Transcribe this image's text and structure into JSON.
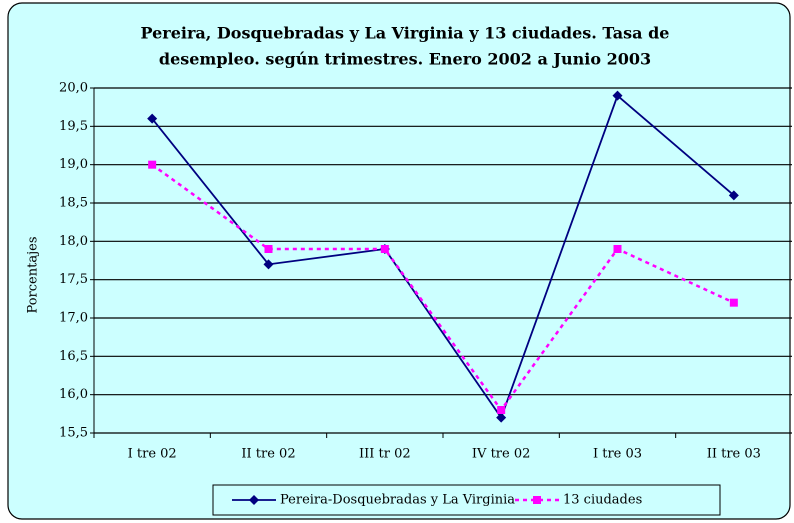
{
  "chart_data": {
    "type": "line",
    "title": [
      "Pereira, Dosquebradas y La Virginia y 13 ciudades. Tasa de",
      "desempleo. según trimestres. Enero 2002 a Junio 2003"
    ],
    "y_label": "Porcentajes",
    "categories": [
      "I tre 02",
      "II tre 02",
      "III tr 02",
      "IV tre 02",
      "I tre 03",
      "II tre 03"
    ],
    "series": [
      {
        "name": "Pereira-Dosquebradas y La Virginia",
        "color": "#000080",
        "marker": "diamond",
        "dashed": false,
        "values": [
          19.6,
          17.7,
          17.9,
          15.7,
          19.9,
          18.6
        ]
      },
      {
        "name": "13 ciudades",
        "color": "#ff00ff",
        "marker": "square",
        "dashed": true,
        "values": [
          19.0,
          17.9,
          17.9,
          15.8,
          17.9,
          17.2
        ]
      }
    ],
    "ylim": [
      15.5,
      20.0
    ],
    "yticks": [
      {
        "value": 15.5,
        "label": "15,5"
      },
      {
        "value": 16.0,
        "label": "16,0"
      },
      {
        "value": 16.5,
        "label": "16,5"
      },
      {
        "value": 17.0,
        "label": "17,0"
      },
      {
        "value": 17.5,
        "label": "17,5"
      },
      {
        "value": 18.0,
        "label": "18,0"
      },
      {
        "value": 18.5,
        "label": "18,5"
      },
      {
        "value": 19.0,
        "label": "19,0"
      },
      {
        "value": 19.5,
        "label": "19,5"
      },
      {
        "value": 20.0,
        "label": "20,0"
      }
    ],
    "grid": true
  }
}
